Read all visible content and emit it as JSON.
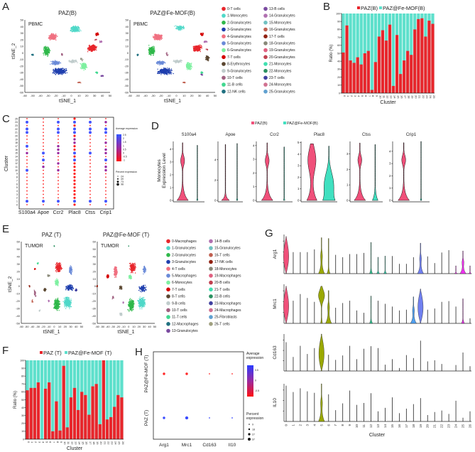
{
  "panels": [
    "A",
    "B",
    "C",
    "D",
    "E",
    "F",
    "G",
    "H"
  ],
  "chart_data": [
    {
      "type": "scatter",
      "panel": "A",
      "titles": [
        "PAZ(B)",
        "PAZ@Fe-MOF(B)"
      ],
      "tissue": "PBMC",
      "xlabel": "tSNE_1",
      "ylabel": "tSNE_2",
      "xticks": [
        -60,
        -50,
        -40,
        -30,
        -20,
        -10,
        0,
        10,
        20,
        30,
        40,
        50
      ],
      "yticks": [
        -60,
        -50,
        -40,
        -30,
        -20,
        -10,
        0,
        10,
        20,
        30,
        40,
        50
      ],
      "legend": [
        "0-T cells",
        "1-Monocytes",
        "2-Granulocytes",
        "3-Granulocytes",
        "4-Granulocytes",
        "5-Granulocytes",
        "6-Granulocytes",
        "7-T cells",
        "8-Erythrocytes",
        "9-Granulocytes",
        "10-T cells",
        "11-B cells",
        "12-NK cells",
        "13-B cells",
        "14-Granulocytes",
        "15-Monocytes",
        "16-Granulocytes",
        "17-T cells",
        "18-Granulocytes",
        "19-Granulocytes",
        "20-Granulocytes",
        "21-Monocytes",
        "22-Monocytes",
        "23-T cells",
        "24-Monocytes",
        "25-Granulocytes"
      ],
      "colors": [
        "#e8262c",
        "#4fd8c8",
        "#2fb84a",
        "#1f3fae",
        "#f07080",
        "#6a8ad8",
        "#7ef0a0",
        "#d40000",
        "#5a4630",
        "#c0cccc",
        "#a06080",
        "#40d890",
        "#207080",
        "#7a4aa0",
        "#b070b0",
        "#70c0c0",
        "#c06050",
        "#902010",
        "#888878",
        "#e06080",
        "#c04050",
        "#40e0b0",
        "#2a9060",
        "#4040a0",
        "#d07090",
        "#60a0d0"
      ]
    },
    {
      "type": "bar",
      "panel": "B",
      "stacked": true,
      "categories": [
        "0",
        "1",
        "2",
        "3",
        "4",
        "5",
        "6",
        "7",
        "8",
        "9",
        "10",
        "11",
        "12",
        "13",
        "14",
        "15",
        "16",
        "17",
        "18",
        "19",
        "20",
        "21",
        "22",
        "23",
        "24",
        "25"
      ],
      "series": [
        {
          "name": "PAZ(B)",
          "color": "#e8262c",
          "values": [
            51,
            85,
            41,
            38,
            45,
            36,
            50,
            53,
            4,
            39,
            71,
            79,
            66,
            86,
            9,
            73,
            24,
            41,
            53,
            48,
            80,
            93,
            94,
            71,
            91,
            87
          ]
        },
        {
          "name": "PAZ@Fe-MOF(B)",
          "color": "#5ee0cc",
          "values": [
            49,
            15,
            59,
            62,
            55,
            64,
            50,
            47,
            96,
            61,
            29,
            21,
            34,
            14,
            91,
            27,
            76,
            59,
            47,
            52,
            20,
            7,
            6,
            29,
            9,
            13
          ]
        }
      ],
      "xlabel": "Cluster",
      "ylabel": "Ratio (%)",
      "ylim": [
        0,
        100
      ],
      "yticks": [
        0,
        10,
        20,
        30,
        40,
        50,
        60,
        70,
        80,
        90,
        100
      ],
      "legend": "top"
    },
    {
      "type": "scatter",
      "subtype": "dotplot",
      "panel": "C",
      "genes": [
        "S100a4",
        "Apoe",
        "Ccr2",
        "Plac8",
        "Ctss",
        "Crip1"
      ],
      "clusters": [
        "0",
        "1",
        "2",
        "3",
        "4",
        "5",
        "6",
        "7",
        "8",
        "9",
        "10",
        "11",
        "12",
        "13",
        "14",
        "15",
        "16",
        "17",
        "18",
        "19",
        "20",
        "21",
        "22",
        "23",
        "24",
        "25"
      ],
      "ylabel": "Cluster",
      "avg_expression_high": {
        "S100a4": {
          "1": 2,
          "10": 2,
          "15": 0.5,
          "17": 2,
          "21": 2,
          "22": 2,
          "24": 2
        },
        "Apoe": {
          "1": 2,
          "11": 0.5,
          "13": 2,
          "15": 2
        },
        "Ccr2": {
          "1": 2,
          "10": 0.5,
          "12": 0.5,
          "15": 0.5,
          "16": 0.5,
          "17": 0.5,
          "21": 2,
          "22": 2,
          "24": 2
        },
        "Plac8": {
          "1": 2,
          "13": 2,
          "15": 2,
          "18": 0.5,
          "19": 0.5,
          "21": 2,
          "22": 2,
          "24": 2
        },
        "Ctss": {
          "1": 2,
          "15": 2,
          "21": 2,
          "22": 2,
          "24": 2
        },
        "Crip1": {
          "1": 2,
          "10": 0.5,
          "11": 0.5,
          "13": 2,
          "15": 0.5,
          "16": 0.5,
          "18": 0.5,
          "21": 2,
          "22": 2,
          "24": 0.5
        }
      },
      "legend_avg_title": "Average expression",
      "legend_avg_ticks": [
        "2.5",
        "2",
        "1.5",
        "1",
        "0.5",
        "0",
        "-0.5",
        "-1"
      ],
      "legend_pct_title": "Percent expression",
      "legend_pct_ticks": [
        "24",
        "49",
        "73",
        "98"
      ]
    },
    {
      "type": "violin",
      "panel": "D",
      "ylabel": [
        "Monocytes",
        "Expression Level"
      ],
      "legend": [
        {
          "name": "PAZ(B)",
          "color": "#f0507a"
        },
        {
          "name": "PAZ@Fe-MOF(B)",
          "color": "#40e0c0"
        }
      ],
      "genes": [
        {
          "name": "S100a4",
          "ymax": 4.6,
          "yticks": [
            "0",
            "1",
            "2",
            "3",
            "4"
          ],
          "paz": {
            "max": 4.5,
            "shape": "bulge",
            "peak": 3.1
          },
          "mof": {
            "max": 4.3,
            "shape": "line"
          }
        },
        {
          "name": "Apoe",
          "ymax": 5.8,
          "yticks": [
            "0",
            "2",
            "4"
          ],
          "paz": {
            "max": 5.5,
            "shape": "flat"
          },
          "mof": {
            "max": 5.6,
            "shape": "line"
          }
        },
        {
          "name": "Ccr2",
          "ymax": 4.3,
          "yticks": [
            "0",
            "1",
            "2",
            "3",
            "4"
          ],
          "paz": {
            "max": 4.2,
            "shape": "bulge",
            "peak": 2.9
          },
          "mof": {
            "max": 3.9,
            "shape": "line"
          }
        },
        {
          "name": "Plac8",
          "ymax": 5.1,
          "yticks": [
            "0",
            "1",
            "2",
            "3",
            "4",
            "5"
          ],
          "paz": {
            "max": 4.9,
            "shape": "wide",
            "peak": 3.5
          },
          "mof": {
            "max": 4.7,
            "shape": "wide",
            "peak": 1.5
          }
        },
        {
          "name": "Ctss",
          "ymax": 3.8,
          "yticks": [
            "0",
            "1",
            "2",
            "3"
          ],
          "paz": {
            "max": 3.7,
            "shape": "bulge",
            "peak": 2.6
          },
          "mof": {
            "max": 3.6,
            "shape": "small"
          }
        },
        {
          "name": "Crip1",
          "ymax": 4.8,
          "yticks": [
            "0",
            "1",
            "2",
            "3",
            "4"
          ],
          "paz": {
            "max": 4.7,
            "shape": "bulge",
            "peak": 3.3
          },
          "mof": {
            "max": 4.8,
            "shape": "line"
          }
        }
      ]
    },
    {
      "type": "scatter",
      "panel": "E",
      "titles": [
        "PAZ (T)",
        "PAZ@Fe-MOF (T)"
      ],
      "tissue": "TUMOR",
      "xlabel": "tSNE_1",
      "ylabel": "tSNE_2",
      "xticks": [
        -60,
        -50,
        -40,
        -30,
        -20,
        -10,
        0,
        10,
        20,
        30,
        40,
        50
      ],
      "yticks": [
        -50,
        -40,
        -30,
        -20,
        -10,
        0,
        10,
        20,
        30,
        40,
        50,
        60
      ],
      "legend": [
        "0-Macrophages",
        "1-Granulocytes",
        "2-Granulocytes",
        "3-Granulocytes",
        "4-T cells",
        "5-Macrophages",
        "6-Monocytes",
        "7-T cells",
        "8-T cells",
        "9-B cells",
        "10-T cells",
        "11-T cells",
        "12-Macrophages",
        "13-Granulocytes",
        "14-B cells",
        "15-Granulocytes",
        "16-T cells",
        "17-NK cells",
        "18-Monocytes",
        "19-Macrophages",
        "20-B cells",
        "21-T cells",
        "22-B cells",
        "23-Macrophages",
        "24-Macrophages",
        "25-Fibroblasts",
        "26-T cells"
      ],
      "colors": [
        "#e8262c",
        "#4fd8c8",
        "#2fb84a",
        "#1f3fae",
        "#f07080",
        "#6a8ad8",
        "#7ef0a0",
        "#d40000",
        "#5a4630",
        "#c0cccc",
        "#a06080",
        "#40d890",
        "#207080",
        "#7a4aa0",
        "#b070b0",
        "#70c0c0",
        "#c06050",
        "#902010",
        "#888878",
        "#e06080",
        "#c04050",
        "#40e0b0",
        "#2a9060",
        "#4040a0",
        "#d07090",
        "#60a0d0",
        "#a0a080"
      ]
    },
    {
      "type": "bar",
      "panel": "F",
      "stacked": true,
      "categories": [
        "0",
        "1",
        "2",
        "3",
        "4",
        "5",
        "6",
        "7",
        "8",
        "9",
        "10",
        "11",
        "12",
        "13",
        "14",
        "15",
        "16",
        "17",
        "18",
        "19",
        "20",
        "21",
        "22",
        "23",
        "24",
        "25",
        "26"
      ],
      "series": [
        {
          "name": "PAZ (T)",
          "color": "#e8262c",
          "values": [
            62,
            65,
            65,
            72,
            0,
            64,
            72,
            10,
            48,
            11,
            93,
            15,
            53,
            65,
            37,
            60,
            56,
            31,
            67,
            70,
            19,
            100,
            25,
            28,
            41,
            56,
            53
          ]
        },
        {
          "name": "PAZ@Fe-MOF (T)",
          "color": "#5ee0cc",
          "values": [
            38,
            35,
            35,
            28,
            100,
            36,
            28,
            90,
            52,
            89,
            7,
            85,
            47,
            35,
            63,
            40,
            44,
            69,
            33,
            30,
            81,
            0,
            75,
            72,
            59,
            44,
            47
          ]
        }
      ],
      "xlabel": "Cluster",
      "ylabel": "Ratio (%)",
      "ylim": [
        0,
        100
      ],
      "legend": "top"
    },
    {
      "type": "violin",
      "panel": "G",
      "xlabel": "Cluster",
      "clusters": [
        "0",
        "1",
        "2",
        "3",
        "4",
        "5",
        "6",
        "7",
        "8",
        "9",
        "10",
        "11",
        "12",
        "13",
        "14",
        "15",
        "16",
        "17",
        "18",
        "19",
        "20",
        "21",
        "22",
        "23",
        "24",
        "25",
        "26"
      ],
      "genes": [
        {
          "name": "Arg1",
          "max_rel": [
            0.95,
            0.55,
            0.55,
            0.55,
            0.62,
            0.92,
            0.9,
            0.48,
            0.42,
            0.5,
            0.5,
            0.53,
            0.8,
            0.42,
            0.45,
            0.45,
            0.25,
            0.25,
            0.42,
            0.78,
            0.44,
            0.27,
            0.54,
            0.6,
            0.2,
            0.58,
            0.2
          ],
          "violins": [
            {
              "c": 0,
              "color": "#f0507a",
              "shape": "full"
            },
            {
              "c": 5,
              "color": "#9aa800",
              "shape": "base"
            },
            {
              "c": 6,
              "color": "#9aa800",
              "shape": "small"
            },
            {
              "c": 12,
              "color": "#30c090",
              "shape": "small"
            },
            {
              "c": 13,
              "color": "#30c0a0",
              "shape": "small"
            },
            {
              "c": 14,
              "color": "#30c0a0",
              "shape": "small"
            },
            {
              "c": 19,
              "color": "#7080f0",
              "shape": "base"
            },
            {
              "c": 24,
              "color": "#e030e0",
              "shape": "small"
            },
            {
              "c": 25,
              "color": "#f030f0",
              "shape": "base"
            },
            {
              "c": 26,
              "color": "#e030e0",
              "shape": "small"
            }
          ]
        },
        {
          "name": "Mrc1",
          "max_rel": [
            0.95,
            0.58,
            0.75,
            0.65,
            0.55,
            0.95,
            0.84,
            0.4,
            0.52,
            0.58,
            0.33,
            0.27,
            0.7,
            0.58,
            0.5,
            0.43,
            0.33,
            0.35,
            0.68,
            0.88,
            0.35,
            0.38,
            0.55,
            0.57,
            0.43,
            0.63,
            0.13
          ],
          "violins": [
            {
              "c": 0,
              "color": "#f0507a",
              "shape": "full"
            },
            {
              "c": 5,
              "color": "#9aa800",
              "shape": "top"
            },
            {
              "c": 6,
              "color": "#9aa800",
              "shape": "base"
            },
            {
              "c": 12,
              "color": "#30c090",
              "shape": "small"
            },
            {
              "c": 18,
              "color": "#50a0f0",
              "shape": "base"
            },
            {
              "c": 19,
              "color": "#7080f0",
              "shape": "full"
            },
            {
              "c": 25,
              "color": "#e030e0",
              "shape": "small"
            }
          ]
        },
        {
          "name": "Cd163",
          "max_rel": [
            0.78,
            0.38,
            0.68,
            0.46,
            0.62,
            1,
            0.44,
            0.3,
            0.42,
            0.68,
            0.32,
            0.6,
            0.67,
            0.62,
            0.17,
            0.32,
            0.08,
            0.43,
            0.35,
            0.82,
            0.26,
            0.29,
            0.19,
            0,
            0.16,
            0.5,
            0.13
          ],
          "violins": [
            {
              "c": 5,
              "color": "#9aa800",
              "shape": "full"
            }
          ]
        },
        {
          "name": "IL10",
          "max_rel": [
            0.95,
            0.78,
            0.88,
            0.8,
            0.76,
            1,
            0.72,
            0.3,
            0.48,
            0.82,
            0.44,
            0.49,
            0.75,
            0.27,
            0.36,
            0.64,
            0.22,
            0.34,
            0.46,
            0.62,
            0.17,
            0.25,
            0.29,
            0.2,
            0.55,
            0.1,
            0.27
          ],
          "violins": [
            {
              "c": 5,
              "color": "#9aa800",
              "shape": "base"
            }
          ]
        }
      ]
    },
    {
      "type": "scatter",
      "subtype": "dotplot",
      "panel": "H",
      "genes": [
        "Arg1",
        "Mrc1",
        "Cd163",
        "Il10"
      ],
      "groups": [
        "PAZ@Fe-MOF (T)",
        "PAZ (T)"
      ],
      "avg_expression": {
        "PAZ@Fe-MOF (T)": [
          -0.5,
          -0.5,
          -0.5,
          -0.5
        ],
        "PAZ (T)": [
          0.5,
          0.5,
          0.5,
          0.5
        ]
      },
      "percent_expression": {
        "PAZ@Fe-MOF (T)": [
          27,
          27,
          9,
          9
        ],
        "PAZ (T)": [
          27,
          37,
          9,
          9
        ]
      },
      "legend_avg_title": [
        "Average",
        "expression"
      ],
      "legend_avg_ticks": [
        "0.5",
        "0",
        "-0.5"
      ],
      "legend_pct_title": [
        "Percent",
        "expression"
      ],
      "legend_pct_ticks": [
        "9",
        "18",
        "27",
        "37"
      ]
    }
  ]
}
